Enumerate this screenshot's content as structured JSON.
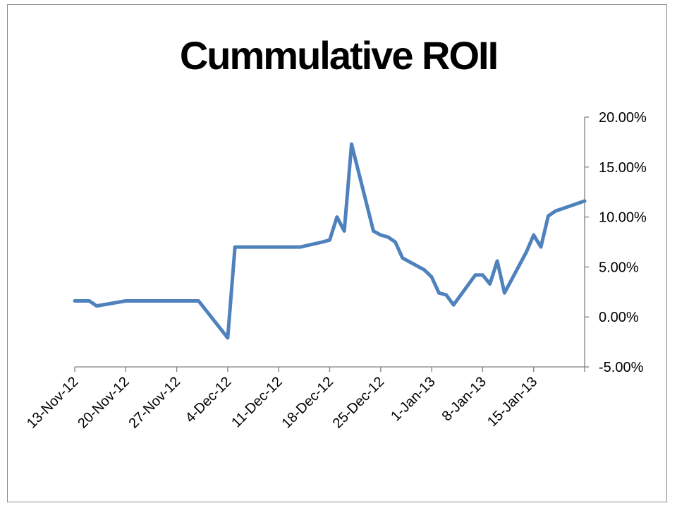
{
  "chart_data": {
    "type": "line",
    "title": "Cummulative ROII",
    "xlabel": "",
    "ylabel": "",
    "x_range": [
      "2012-11-13",
      "2013-01-22"
    ],
    "ylim": [
      -0.05,
      0.2
    ],
    "y_ticks": [
      -0.05,
      0.0,
      0.05,
      0.1,
      0.15,
      0.2
    ],
    "y_tick_labels": [
      "-5.00%",
      "0.00%",
      "5.00%",
      "10.00%",
      "15.00%",
      "20.00%"
    ],
    "x_ticks": [
      "2012-11-13",
      "2012-11-20",
      "2012-11-27",
      "2012-12-04",
      "2012-12-11",
      "2012-12-18",
      "2012-12-25",
      "2013-01-01",
      "2013-01-08",
      "2013-01-15"
    ],
    "x_tick_labels": [
      "13-Nov-12",
      "20-Nov-12",
      "27-Nov-12",
      "4-Dec-12",
      "11-Dec-12",
      "18-Dec-12",
      "25-Dec-12",
      "1-Jan-13",
      "8-Jan-13",
      "15-Jan-13"
    ],
    "grid": false,
    "y_axis_position": "right",
    "line_color": "#4f81bd",
    "series": [
      {
        "x": [
          "2012-11-13",
          "2012-11-15",
          "2012-11-16",
          "2012-11-20",
          "2012-11-30",
          "2012-12-04",
          "2012-12-05",
          "2012-12-14",
          "2012-12-17",
          "2012-12-18",
          "2012-12-19",
          "2012-12-20",
          "2012-12-21",
          "2012-12-24",
          "2012-12-25",
          "2012-12-26",
          "2012-12-27",
          "2012-12-28",
          "2012-12-31",
          "2013-01-01",
          "2013-01-02",
          "2013-01-03",
          "2013-01-04",
          "2013-01-07",
          "2013-01-08",
          "2013-01-09",
          "2013-01-10",
          "2013-01-11",
          "2013-01-14",
          "2013-01-15",
          "2013-01-16",
          "2013-01-17",
          "2013-01-18",
          "2013-01-22"
        ],
        "y": [
          0.016,
          0.016,
          0.011,
          0.016,
          0.016,
          -0.021,
          0.07,
          0.07,
          0.075,
          0.077,
          0.1,
          0.086,
          0.173,
          0.086,
          0.082,
          0.08,
          0.075,
          0.059,
          0.047,
          0.04,
          0.024,
          0.022,
          0.012,
          0.042,
          0.042,
          0.033,
          0.056,
          0.024,
          0.065,
          0.082,
          0.07,
          0.101,
          0.106,
          0.116
        ]
      }
    ]
  }
}
